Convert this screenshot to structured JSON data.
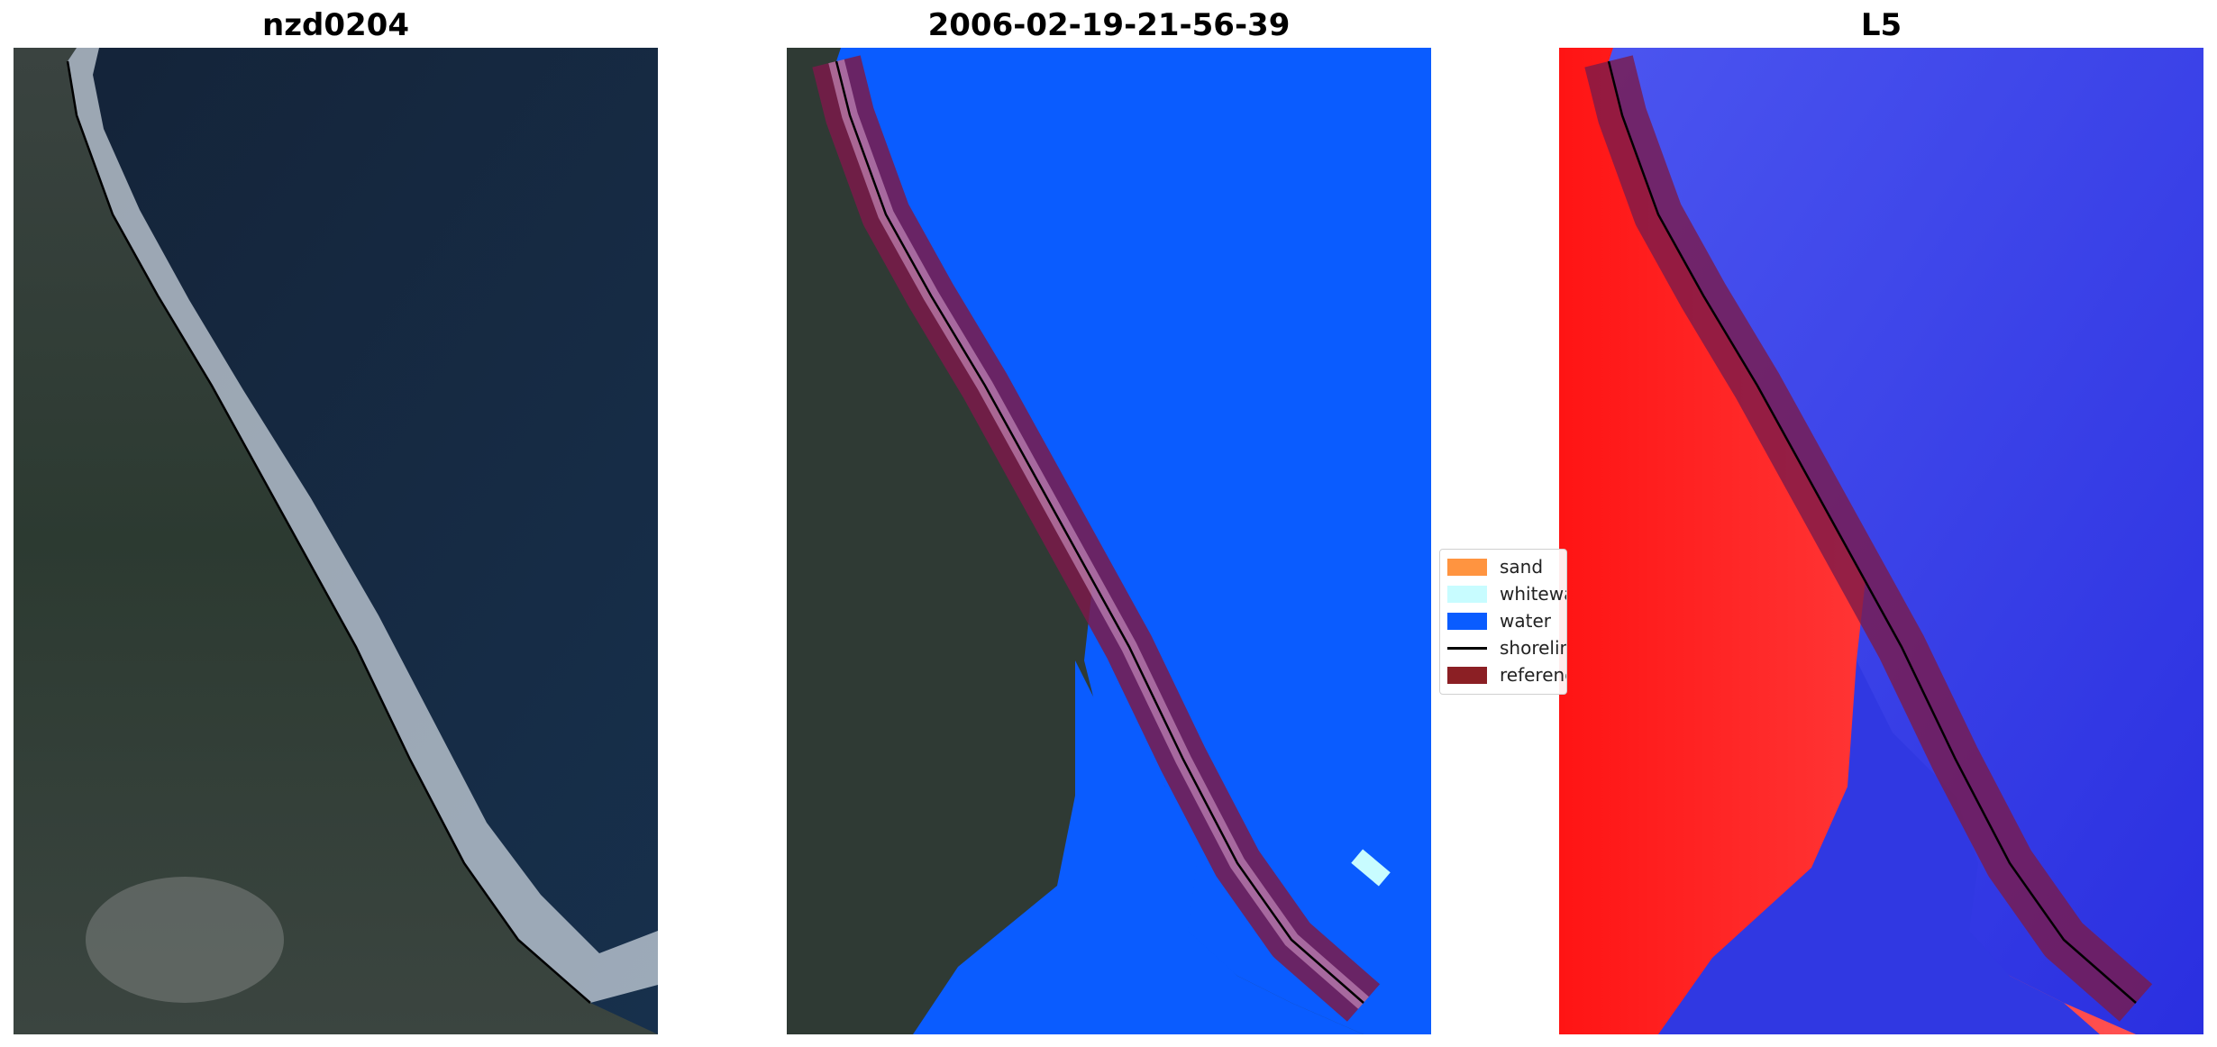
{
  "figure": {
    "panels": [
      {
        "title": "nzd0204"
      },
      {
        "title": "2006-02-19-21-56-39"
      },
      {
        "title": "L5"
      }
    ]
  },
  "legend": {
    "items": [
      {
        "label": "sand",
        "color": "#ff9440",
        "kind": "patch"
      },
      {
        "label": "whitewater",
        "color": "#c8fcff",
        "kind": "patch"
      },
      {
        "label": "water",
        "color": "#0a5cff",
        "kind": "patch"
      },
      {
        "label": "shoreline",
        "color": "#000000",
        "kind": "line"
      },
      {
        "label": "reference shoreline buffer",
        "color": "#8b1f24",
        "kind": "patch"
      }
    ]
  },
  "colors": {
    "ocean": "#152744",
    "land": "#2b3a34",
    "water_class": "#0a5cff",
    "buffer": "#7a1a4a",
    "mndwi_land": "#ff1a1a",
    "mndwi_water": "#3236e6"
  }
}
